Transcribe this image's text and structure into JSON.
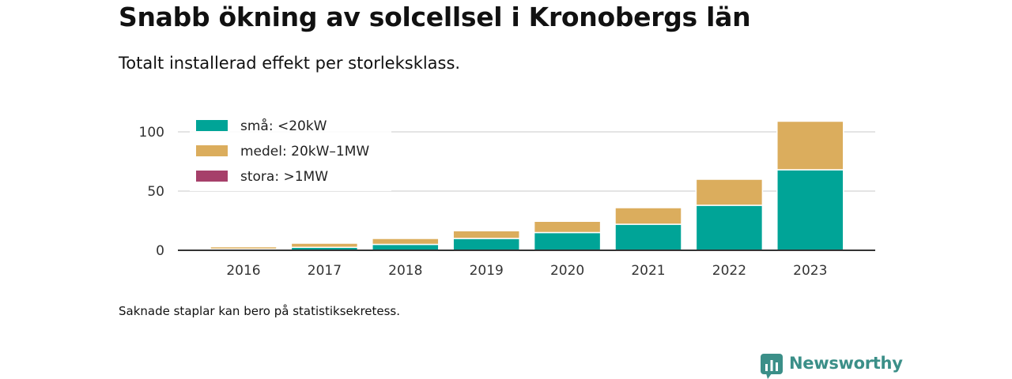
{
  "header": {
    "title": "Snabb ökning av solcellsel i Kronobergs län",
    "subtitle": "Totalt installerad effekt per storleksklass."
  },
  "footer": {
    "note": "Saknade staplar kan bero på statistiksekretess.",
    "brand": "Newsworthy"
  },
  "chart_data": {
    "type": "bar",
    "stacked": true,
    "categories": [
      "2016",
      "2017",
      "2018",
      "2019",
      "2020",
      "2021",
      "2022",
      "2023"
    ],
    "series": [
      {
        "name": "små: <20kW",
        "color": "#00a497",
        "values": [
          1,
          2.5,
          5,
          10,
          15,
          22,
          38,
          68
        ]
      },
      {
        "name": "medel: 20kW–1MW",
        "color": "#dbad5d",
        "values": [
          2,
          3.5,
          5,
          6.5,
          9.5,
          14,
          22,
          41
        ]
      },
      {
        "name": "stora: >1MW",
        "color": "#a6406a",
        "values": [
          0,
          0,
          0,
          0,
          0,
          0,
          0,
          0
        ]
      }
    ],
    "ylim": [
      0,
      110
    ],
    "yticks": [
      0,
      50,
      100
    ],
    "grid": true,
    "legend_position": "top-left",
    "xlabel": "",
    "ylabel": ""
  }
}
